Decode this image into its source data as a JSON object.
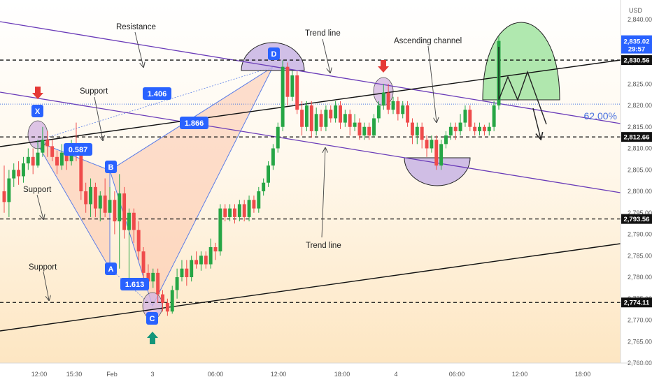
{
  "chart_data": {
    "type": "candlestick",
    "currency": "USD",
    "y_range": [
      2757,
      2845
    ],
    "y_ticks": [
      "2,840.00",
      "2,835.00",
      "2,830.00",
      "2,825.00",
      "2,820.00",
      "2,815.00",
      "2,810.00",
      "2,805.00",
      "2,800.00",
      "2,795.00",
      "2,790.00",
      "2,785.00",
      "2,780.00",
      "2,775.00",
      "2,770.00",
      "2,765.00",
      "2,760.00"
    ],
    "x_ticks": [
      "12:00",
      "15:30",
      "Feb",
      "3",
      "06:00",
      "12:00",
      "18:00",
      "4",
      "06:00",
      "12:00",
      "18:00"
    ],
    "levels": [
      {
        "price": 2830.56,
        "label": "2,830.56"
      },
      {
        "price": 2812.66,
        "label": "2,812.66"
      },
      {
        "price": 2793.56,
        "label": "2,793.56"
      },
      {
        "price": 2774.11,
        "label": "2,774.11"
      }
    ],
    "current_price": {
      "price": 2835.02,
      "label": "2,835.02",
      "countdown": "29:57"
    },
    "fib_level": {
      "price": 2820.3,
      "label": "62.00%"
    },
    "pattern_points": [
      {
        "name": "X",
        "price": 2812.5
      },
      {
        "name": "A",
        "price": 2780.5
      },
      {
        "name": "B",
        "price": 2803.5
      },
      {
        "name": "C",
        "price": 2773.5
      },
      {
        "name": "D",
        "price": 2830.2
      }
    ],
    "ratios": [
      "0.587",
      "1.406",
      "1.866",
      "1.613"
    ],
    "annotations": [
      "Resistance",
      "Trend line",
      "Ascending channel",
      "Support",
      "Support",
      "Support",
      "Trend line"
    ],
    "candles": [
      {
        "o": 2800,
        "c": 2797.5,
        "h": 2806,
        "l": 2795
      },
      {
        "o": 2797.5,
        "c": 2803,
        "h": 2805,
        "l": 2794
      },
      {
        "o": 2803,
        "c": 2805,
        "h": 2806.5,
        "l": 2801
      },
      {
        "o": 2805,
        "c": 2803.5,
        "h": 2807,
        "l": 2801.5
      },
      {
        "o": 2803.5,
        "c": 2806.5,
        "h": 2808,
        "l": 2802
      },
      {
        "o": 2806.5,
        "c": 2808,
        "h": 2810,
        "l": 2805
      },
      {
        "o": 2808,
        "c": 2806,
        "h": 2810,
        "l": 2804
      },
      {
        "o": 2806,
        "c": 2809,
        "h": 2812,
        "l": 2805.5
      },
      {
        "o": 2809,
        "c": 2812,
        "h": 2815,
        "l": 2808
      },
      {
        "o": 2812,
        "c": 2810.5,
        "h": 2814,
        "l": 2808
      },
      {
        "o": 2810.5,
        "c": 2808,
        "h": 2812,
        "l": 2807
      },
      {
        "o": 2808,
        "c": 2806,
        "h": 2809.5,
        "l": 2804
      },
      {
        "o": 2806,
        "c": 2809,
        "h": 2811,
        "l": 2805
      },
      {
        "o": 2809,
        "c": 2807,
        "h": 2810,
        "l": 2805
      },
      {
        "o": 2807,
        "c": 2811,
        "h": 2812,
        "l": 2806
      },
      {
        "o": 2811,
        "c": 2809,
        "h": 2816,
        "l": 2807
      },
      {
        "o": 2809,
        "c": 2800,
        "h": 2811,
        "l": 2798
      },
      {
        "o": 2800,
        "c": 2797,
        "h": 2802,
        "l": 2795
      },
      {
        "o": 2797,
        "c": 2801,
        "h": 2803,
        "l": 2794
      },
      {
        "o": 2801,
        "c": 2796,
        "h": 2802,
        "l": 2794
      },
      {
        "o": 2796,
        "c": 2799,
        "h": 2800,
        "l": 2793
      },
      {
        "o": 2799,
        "c": 2795,
        "h": 2803,
        "l": 2794
      },
      {
        "o": 2795,
        "c": 2798,
        "h": 2801,
        "l": 2795
      },
      {
        "o": 2798,
        "c": 2793,
        "h": 2800,
        "l": 2790
      },
      {
        "o": 2793,
        "c": 2799.5,
        "h": 2804,
        "l": 2782
      },
      {
        "o": 2799.5,
        "c": 2791,
        "h": 2801,
        "l": 2789
      },
      {
        "o": 2791,
        "c": 2795,
        "h": 2796,
        "l": 2779
      },
      {
        "o": 2795,
        "c": 2791,
        "h": 2796,
        "l": 2788
      },
      {
        "o": 2791,
        "c": 2786,
        "h": 2793,
        "l": 2784
      },
      {
        "o": 2786,
        "c": 2781,
        "h": 2787,
        "l": 2779
      },
      {
        "o": 2781,
        "c": 2779,
        "h": 2783,
        "l": 2777
      },
      {
        "o": 2779,
        "c": 2781,
        "h": 2782,
        "l": 2777.5
      },
      {
        "o": 2781,
        "c": 2776,
        "h": 2782,
        "l": 2774
      },
      {
        "o": 2776,
        "c": 2774,
        "h": 2777,
        "l": 2772
      },
      {
        "o": 2774,
        "c": 2772,
        "h": 2775,
        "l": 2771
      },
      {
        "o": 2772,
        "c": 2777,
        "h": 2778,
        "l": 2771.5
      },
      {
        "o": 2777,
        "c": 2780,
        "h": 2782,
        "l": 2775
      },
      {
        "o": 2780,
        "c": 2782,
        "h": 2784,
        "l": 2779
      },
      {
        "o": 2782,
        "c": 2780,
        "h": 2784,
        "l": 2778
      },
      {
        "o": 2780,
        "c": 2784,
        "h": 2785,
        "l": 2779
      },
      {
        "o": 2784,
        "c": 2783,
        "h": 2786,
        "l": 2782
      },
      {
        "o": 2783,
        "c": 2785,
        "h": 2786,
        "l": 2781.5
      },
      {
        "o": 2785,
        "c": 2783,
        "h": 2786,
        "l": 2782
      },
      {
        "o": 2783,
        "c": 2787,
        "h": 2789,
        "l": 2782
      },
      {
        "o": 2787,
        "c": 2786,
        "h": 2788,
        "l": 2784
      },
      {
        "o": 2786,
        "c": 2796,
        "h": 2797,
        "l": 2785
      },
      {
        "o": 2796,
        "c": 2794,
        "h": 2797,
        "l": 2793
      },
      {
        "o": 2794,
        "c": 2796,
        "h": 2797,
        "l": 2793
      },
      {
        "o": 2796,
        "c": 2794,
        "h": 2797,
        "l": 2792.5
      },
      {
        "o": 2794,
        "c": 2797,
        "h": 2798,
        "l": 2793
      },
      {
        "o": 2797,
        "c": 2794,
        "h": 2798,
        "l": 2793
      },
      {
        "o": 2794,
        "c": 2798,
        "h": 2799,
        "l": 2793
      },
      {
        "o": 2798,
        "c": 2796,
        "h": 2799,
        "l": 2795
      },
      {
        "o": 2796,
        "c": 2800,
        "h": 2801,
        "l": 2795
      },
      {
        "o": 2800,
        "c": 2802,
        "h": 2803,
        "l": 2799
      },
      {
        "o": 2802,
        "c": 2806,
        "h": 2807,
        "l": 2801
      },
      {
        "o": 2806,
        "c": 2810,
        "h": 2811,
        "l": 2805
      },
      {
        "o": 2810,
        "c": 2815,
        "h": 2816,
        "l": 2809
      },
      {
        "o": 2815,
        "c": 2829,
        "h": 2830.5,
        "l": 2814
      },
      {
        "o": 2829,
        "c": 2822,
        "h": 2830,
        "l": 2820
      },
      {
        "o": 2822,
        "c": 2827,
        "h": 2828,
        "l": 2821
      },
      {
        "o": 2827,
        "c": 2819,
        "h": 2828,
        "l": 2818
      },
      {
        "o": 2819,
        "c": 2815,
        "h": 2821,
        "l": 2813
      },
      {
        "o": 2815,
        "c": 2820,
        "h": 2821,
        "l": 2814
      },
      {
        "o": 2820,
        "c": 2814,
        "h": 2821,
        "l": 2812.5
      },
      {
        "o": 2814,
        "c": 2818,
        "h": 2819.5,
        "l": 2813
      },
      {
        "o": 2818,
        "c": 2815,
        "h": 2819,
        "l": 2814
      },
      {
        "o": 2815,
        "c": 2819,
        "h": 2820,
        "l": 2814
      },
      {
        "o": 2819,
        "c": 2817,
        "h": 2820,
        "l": 2816
      },
      {
        "o": 2817,
        "c": 2820,
        "h": 2821,
        "l": 2816
      },
      {
        "o": 2820,
        "c": 2816,
        "h": 2821,
        "l": 2814.5
      },
      {
        "o": 2816,
        "c": 2818,
        "h": 2819,
        "l": 2815
      },
      {
        "o": 2818,
        "c": 2815,
        "h": 2819,
        "l": 2813
      },
      {
        "o": 2815,
        "c": 2816,
        "h": 2818,
        "l": 2814
      },
      {
        "o": 2816,
        "c": 2813,
        "h": 2817,
        "l": 2812
      },
      {
        "o": 2813,
        "c": 2815,
        "h": 2816,
        "l": 2812
      },
      {
        "o": 2815,
        "c": 2813,
        "h": 2816,
        "l": 2812
      },
      {
        "o": 2813,
        "c": 2817,
        "h": 2818,
        "l": 2812.5
      },
      {
        "o": 2817,
        "c": 2820,
        "h": 2821,
        "l": 2816
      },
      {
        "o": 2820,
        "c": 2823,
        "h": 2825,
        "l": 2819
      },
      {
        "o": 2823,
        "c": 2819,
        "h": 2825,
        "l": 2818
      },
      {
        "o": 2819,
        "c": 2821,
        "h": 2822,
        "l": 2818
      },
      {
        "o": 2821,
        "c": 2818,
        "h": 2822,
        "l": 2816.5
      },
      {
        "o": 2818,
        "c": 2820,
        "h": 2821,
        "l": 2817
      },
      {
        "o": 2820,
        "c": 2816,
        "h": 2821,
        "l": 2815
      },
      {
        "o": 2816,
        "c": 2813,
        "h": 2817,
        "l": 2811
      },
      {
        "o": 2813,
        "c": 2815,
        "h": 2816,
        "l": 2811
      },
      {
        "o": 2815,
        "c": 2812,
        "h": 2816,
        "l": 2810
      },
      {
        "o": 2812,
        "c": 2810,
        "h": 2813,
        "l": 2808
      },
      {
        "o": 2810,
        "c": 2812,
        "h": 2813,
        "l": 2809
      },
      {
        "o": 2812,
        "c": 2806,
        "h": 2813,
        "l": 2805
      },
      {
        "o": 2806,
        "c": 2811,
        "h": 2812,
        "l": 2805
      },
      {
        "o": 2811,
        "c": 2813,
        "h": 2814,
        "l": 2810
      },
      {
        "o": 2813,
        "c": 2815,
        "h": 2816,
        "l": 2812
      },
      {
        "o": 2815,
        "c": 2814,
        "h": 2816,
        "l": 2812
      },
      {
        "o": 2814,
        "c": 2816,
        "h": 2818,
        "l": 2813
      },
      {
        "o": 2816,
        "c": 2819,
        "h": 2820,
        "l": 2815
      },
      {
        "o": 2819,
        "c": 2815,
        "h": 2820,
        "l": 2814
      },
      {
        "o": 2815,
        "c": 2814,
        "h": 2816,
        "l": 2813
      },
      {
        "o": 2814,
        "c": 2815,
        "h": 2816,
        "l": 2813
      },
      {
        "o": 2815,
        "c": 2814,
        "h": 2815.5,
        "l": 2813
      },
      {
        "o": 2814,
        "c": 2815,
        "h": 2816,
        "l": 2813
      },
      {
        "o": 2815,
        "c": 2820,
        "h": 2821,
        "l": 2814
      },
      {
        "o": 2820,
        "c": 2835.02,
        "h": 2836,
        "l": 2819
      }
    ]
  }
}
